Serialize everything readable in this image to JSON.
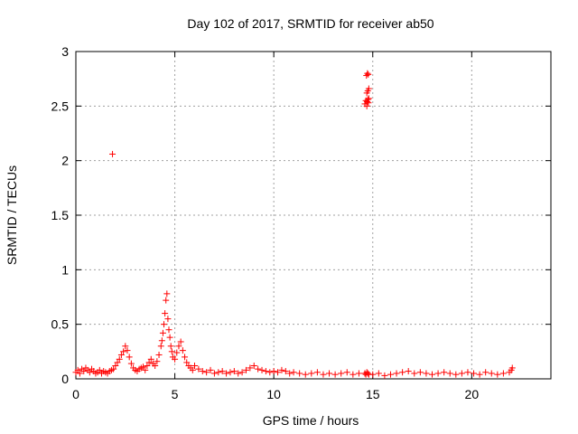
{
  "chart_data": {
    "type": "scatter",
    "title": "Day 102 of 2017, SRMTID for receiver ab50",
    "xlabel": "GPS time / hours",
    "ylabel": "SRMTID / TECUs",
    "xlim": [
      0,
      24
    ],
    "ylim": [
      0,
      3
    ],
    "xticks": [
      0,
      5,
      10,
      15,
      20
    ],
    "xtick_labels": [
      "0",
      "5",
      "10",
      "15",
      "20"
    ],
    "yticks": [
      0,
      0.5,
      1,
      1.5,
      2,
      2.5,
      3
    ],
    "ytick_labels": [
      "0",
      "0.5",
      "1",
      "1.5",
      "2",
      "2.5",
      "3"
    ],
    "grid": true,
    "marker": "+",
    "color": "#ff0000",
    "series": [
      {
        "name": "SRMTID",
        "x": [
          0.0,
          0.1,
          0.2,
          0.3,
          0.4,
          0.5,
          0.6,
          0.7,
          0.8,
          0.9,
          1.0,
          1.1,
          1.2,
          1.3,
          1.4,
          1.5,
          1.6,
          1.7,
          1.8,
          1.9,
          2.0,
          2.1,
          2.2,
          2.3,
          2.4,
          2.5,
          2.6,
          2.7,
          2.8,
          2.9,
          3.0,
          3.1,
          3.2,
          3.3,
          3.4,
          3.5,
          3.6,
          3.7,
          3.8,
          3.9,
          4.0,
          4.1,
          4.2,
          4.3,
          4.35,
          4.4,
          4.45,
          4.5,
          4.55,
          4.6,
          4.65,
          4.7,
          4.75,
          4.8,
          4.85,
          4.9,
          5.0,
          5.1,
          5.2,
          5.3,
          5.4,
          5.5,
          5.6,
          5.7,
          5.8,
          5.9,
          6.0,
          6.2,
          6.4,
          6.6,
          6.8,
          7.0,
          7.2,
          7.4,
          7.6,
          7.8,
          8.0,
          8.2,
          8.4,
          8.6,
          8.8,
          9.0,
          9.2,
          9.4,
          9.6,
          9.8,
          10.0,
          10.2,
          10.4,
          10.6,
          10.8,
          11.0,
          11.3,
          11.6,
          11.9,
          12.2,
          12.5,
          12.8,
          13.1,
          13.4,
          13.7,
          14.0,
          14.3,
          14.6,
          14.65,
          14.7,
          14.75,
          14.8,
          15.0,
          15.3,
          15.6,
          15.9,
          16.2,
          16.5,
          16.8,
          17.1,
          17.4,
          17.7,
          18.0,
          18.3,
          18.6,
          18.9,
          19.2,
          19.5,
          19.8,
          20.1,
          20.4,
          20.7,
          21.0,
          21.3,
          21.6,
          21.9,
          22.0,
          22.05,
          1.85,
          14.6,
          14.65,
          14.7,
          14.72,
          14.75,
          14.78,
          14.8,
          14.7,
          14.75,
          14.8,
          14.68,
          14.73,
          14.77
        ],
        "y": [
          0.06,
          0.08,
          0.05,
          0.09,
          0.07,
          0.1,
          0.08,
          0.06,
          0.09,
          0.07,
          0.05,
          0.06,
          0.08,
          0.05,
          0.07,
          0.06,
          0.05,
          0.07,
          0.08,
          0.09,
          0.12,
          0.15,
          0.18,
          0.22,
          0.25,
          0.3,
          0.26,
          0.2,
          0.14,
          0.1,
          0.08,
          0.07,
          0.09,
          0.1,
          0.11,
          0.08,
          0.12,
          0.15,
          0.18,
          0.14,
          0.12,
          0.16,
          0.22,
          0.3,
          0.35,
          0.42,
          0.5,
          0.6,
          0.72,
          0.78,
          0.55,
          0.45,
          0.38,
          0.3,
          0.25,
          0.2,
          0.18,
          0.24,
          0.3,
          0.34,
          0.26,
          0.2,
          0.15,
          0.12,
          0.1,
          0.08,
          0.12,
          0.09,
          0.07,
          0.06,
          0.08,
          0.05,
          0.06,
          0.07,
          0.05,
          0.06,
          0.07,
          0.05,
          0.06,
          0.08,
          0.1,
          0.12,
          0.09,
          0.08,
          0.07,
          0.06,
          0.07,
          0.06,
          0.08,
          0.07,
          0.05,
          0.06,
          0.05,
          0.04,
          0.05,
          0.06,
          0.04,
          0.05,
          0.04,
          0.05,
          0.06,
          0.04,
          0.05,
          0.05,
          0.04,
          0.06,
          0.05,
          0.04,
          0.04,
          0.05,
          0.03,
          0.04,
          0.05,
          0.06,
          0.07,
          0.05,
          0.06,
          0.05,
          0.04,
          0.05,
          0.06,
          0.05,
          0.04,
          0.05,
          0.06,
          0.05,
          0.04,
          0.06,
          0.05,
          0.04,
          0.05,
          0.06,
          0.08,
          0.1,
          2.06,
          2.52,
          2.55,
          2.5,
          2.54,
          2.56,
          2.53,
          2.57,
          2.62,
          2.64,
          2.66,
          2.78,
          2.8,
          2.79
        ]
      }
    ]
  }
}
